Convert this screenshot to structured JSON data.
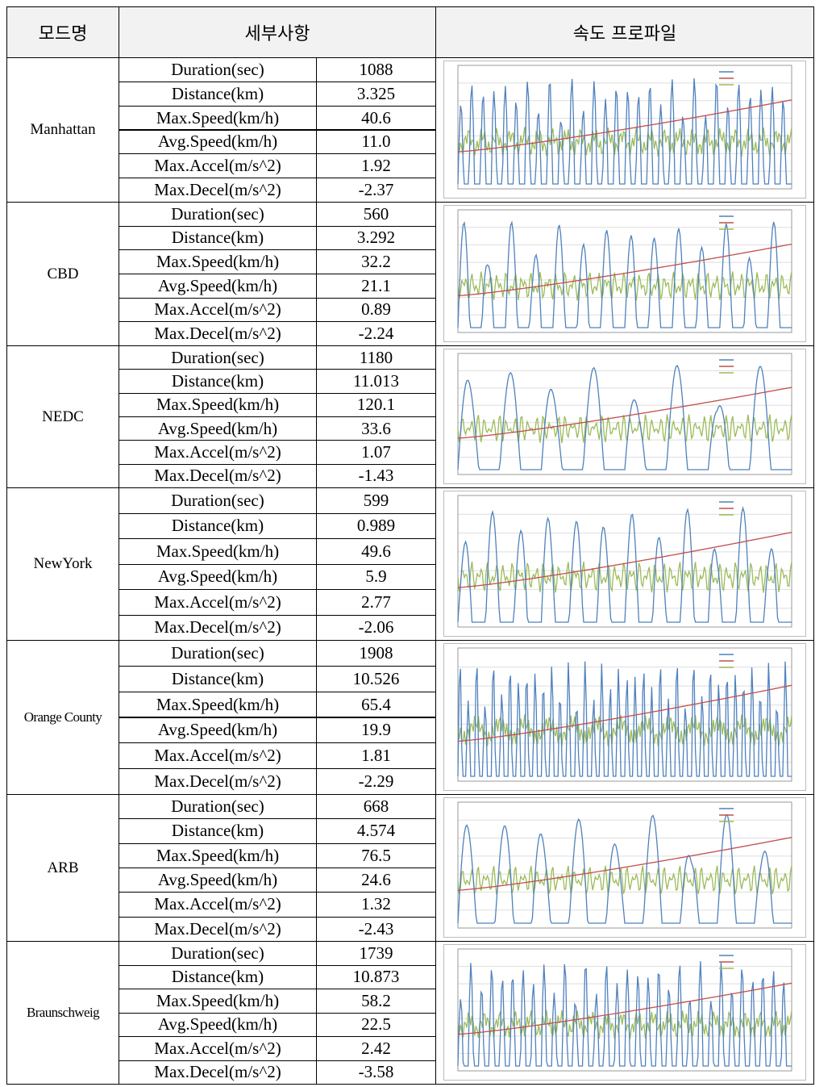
{
  "header": [
    "모드명",
    "세부사항",
    "속도 프로파일"
  ],
  "modes": [
    {
      "name": "Manhattan",
      "details": [
        [
          "Duration(sec)",
          "1088"
        ],
        [
          "Distance(km)",
          "3.325"
        ],
        [
          "Max.Speed(km/h)",
          "40.6"
        ],
        [
          "Avg.Speed(km/h)",
          "11.0"
        ],
        [
          "Max.Accel(m/s^2)",
          "1.92"
        ],
        [
          "Max.Decel(m/s^2)",
          "-2.37"
        ]
      ]
    },
    {
      "name": "CBD",
      "details": [
        [
          "Duration(sec)",
          "560"
        ],
        [
          "Distance(km)",
          "3.292"
        ],
        [
          "Max.Speed(km/h)",
          "32.2"
        ],
        [
          "Avg.Speed(km/h)",
          "21.1"
        ],
        [
          "Max.Accel(m/s^2)",
          "0.89"
        ],
        [
          "Max.Decel(m/s^2)",
          "-2.24"
        ]
      ]
    },
    {
      "name": "NEDC",
      "details": [
        [
          "Duration(sec)",
          "1180"
        ],
        [
          "Distance(km)",
          "11.013"
        ],
        [
          "Max.Speed(km/h)",
          "120.1"
        ],
        [
          "Avg.Speed(km/h)",
          "33.6"
        ],
        [
          "Max.Accel(m/s^2)",
          "1.07"
        ],
        [
          "Max.Decel(m/s^2)",
          "-1.43"
        ]
      ]
    },
    {
      "name": "NewYork",
      "details": [
        [
          "Duration(sec)",
          "599"
        ],
        [
          "Distance(km)",
          "0.989"
        ],
        [
          "Max.Speed(km/h)",
          "49.6"
        ],
        [
          "Avg.Speed(km/h)",
          "5.9"
        ],
        [
          "Max.Accel(m/s^2)",
          "2.77"
        ],
        [
          "Max.Decel(m/s^2)",
          "-2.06"
        ]
      ]
    },
    {
      "name": "Orange County",
      "details": [
        [
          "Duration(sec)",
          "1908"
        ],
        [
          "Distance(km)",
          "10.526"
        ],
        [
          "Max.Speed(km/h)",
          "65.4"
        ],
        [
          "Avg.Speed(km/h)",
          "19.9"
        ],
        [
          "Max.Accel(m/s^2)",
          "1.81"
        ],
        [
          "Max.Decel(m/s^2)",
          "-2.29"
        ]
      ]
    },
    {
      "name": "ARB",
      "details": [
        [
          "Duration(sec)",
          "668"
        ],
        [
          "Distance(km)",
          "4.574"
        ],
        [
          "Max.Speed(km/h)",
          "76.5"
        ],
        [
          "Avg.Speed(km/h)",
          "24.6"
        ],
        [
          "Max.Accel(m/s^2)",
          "1.32"
        ],
        [
          "Max.Decel(m/s^2)",
          "-2.43"
        ]
      ]
    },
    {
      "name": "Braunschweig",
      "details": [
        [
          "Duration(sec)",
          "1739"
        ],
        [
          "Distance(km)",
          "10.873"
        ],
        [
          "Max.Speed(km/h)",
          "58.2"
        ],
        [
          "Avg.Speed(km/h)",
          "22.5"
        ],
        [
          "Max.Accel(m/s^2)",
          "2.42"
        ],
        [
          "Max.Decel(m/s^2)",
          "-3.58"
        ]
      ]
    }
  ]
}
